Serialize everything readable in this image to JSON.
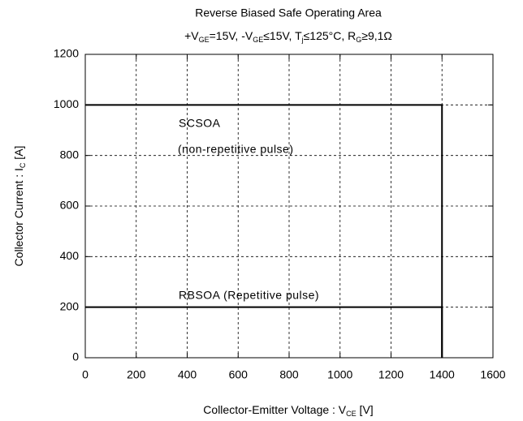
{
  "chart_data": {
    "type": "line",
    "title": "Reverse Biased Safe Operating Area",
    "subtitle": [
      "+V",
      "GE",
      "=15V, -V",
      "GE",
      "≤15V, T",
      "j",
      "≤125°C, R",
      "G",
      "≥9,1Ω"
    ],
    "xlabel": [
      "Collector-Emitter Voltage  : V",
      "CE",
      "  [V]"
    ],
    "ylabel": [
      "Collector Current : I",
      "C",
      "  [A]"
    ],
    "xlim": [
      0,
      1600
    ],
    "ylim": [
      0,
      1200
    ],
    "xticks": [
      0,
      200,
      400,
      600,
      800,
      1000,
      1200,
      1400,
      1600
    ],
    "yticks": [
      0,
      200,
      400,
      600,
      800,
      1000,
      1200
    ],
    "grid": true,
    "series": [
      {
        "name": "SCSOA",
        "color": "#000000",
        "x": [
          0,
          1400,
          1400
        ],
        "values": [
          1000,
          1000,
          0
        ]
      },
      {
        "name": "RBSOA",
        "color": "#000000",
        "x": [
          0,
          1400,
          1400
        ],
        "values": [
          200,
          200,
          0
        ]
      }
    ],
    "annotations": [
      "SCSOA",
      "(non-repetitive pulse)",
      "RBSOA (Repetitive pulse)"
    ]
  }
}
